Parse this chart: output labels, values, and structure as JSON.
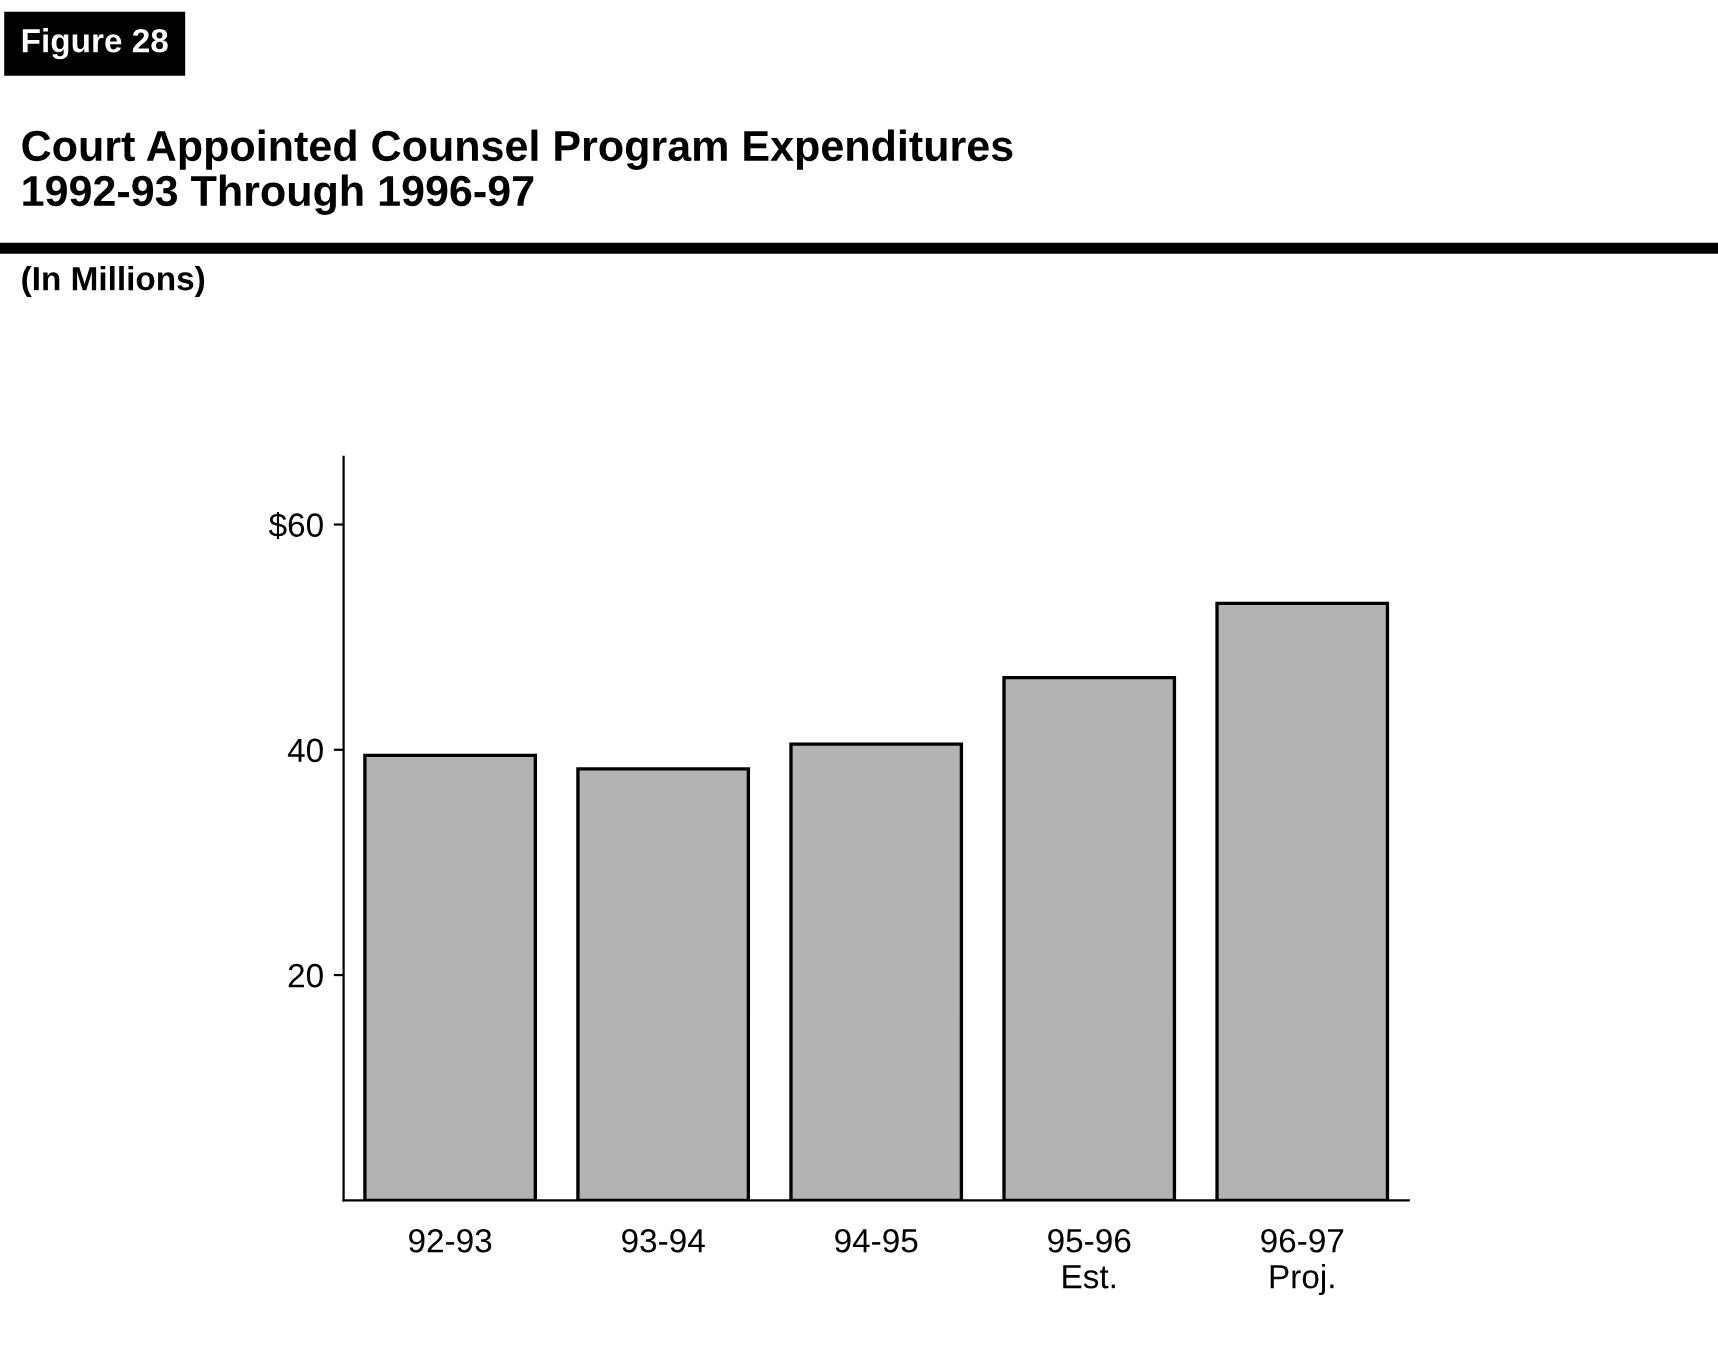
{
  "chart_data": {
    "type": "bar",
    "title": "Court Appointed Counsel Program Expenditures\n1992-93 Through 1996-97",
    "subtitle": "(In Millions)",
    "annotations": [
      "Figure 28"
    ],
    "categories": [
      "92-93",
      "93-94",
      "94-95",
      "95-96\nEst.",
      "96-97\nProj."
    ],
    "values": [
      39.5,
      38.3,
      40.5,
      46.4,
      53.0
    ],
    "color": "#b3b3b3",
    "ylim": [
      0,
      66
    ],
    "yticks": [
      {
        "value": 20,
        "label": "20"
      },
      {
        "value": 40,
        "label": "40"
      },
      {
        "value": 60,
        "label": "$60"
      }
    ]
  }
}
